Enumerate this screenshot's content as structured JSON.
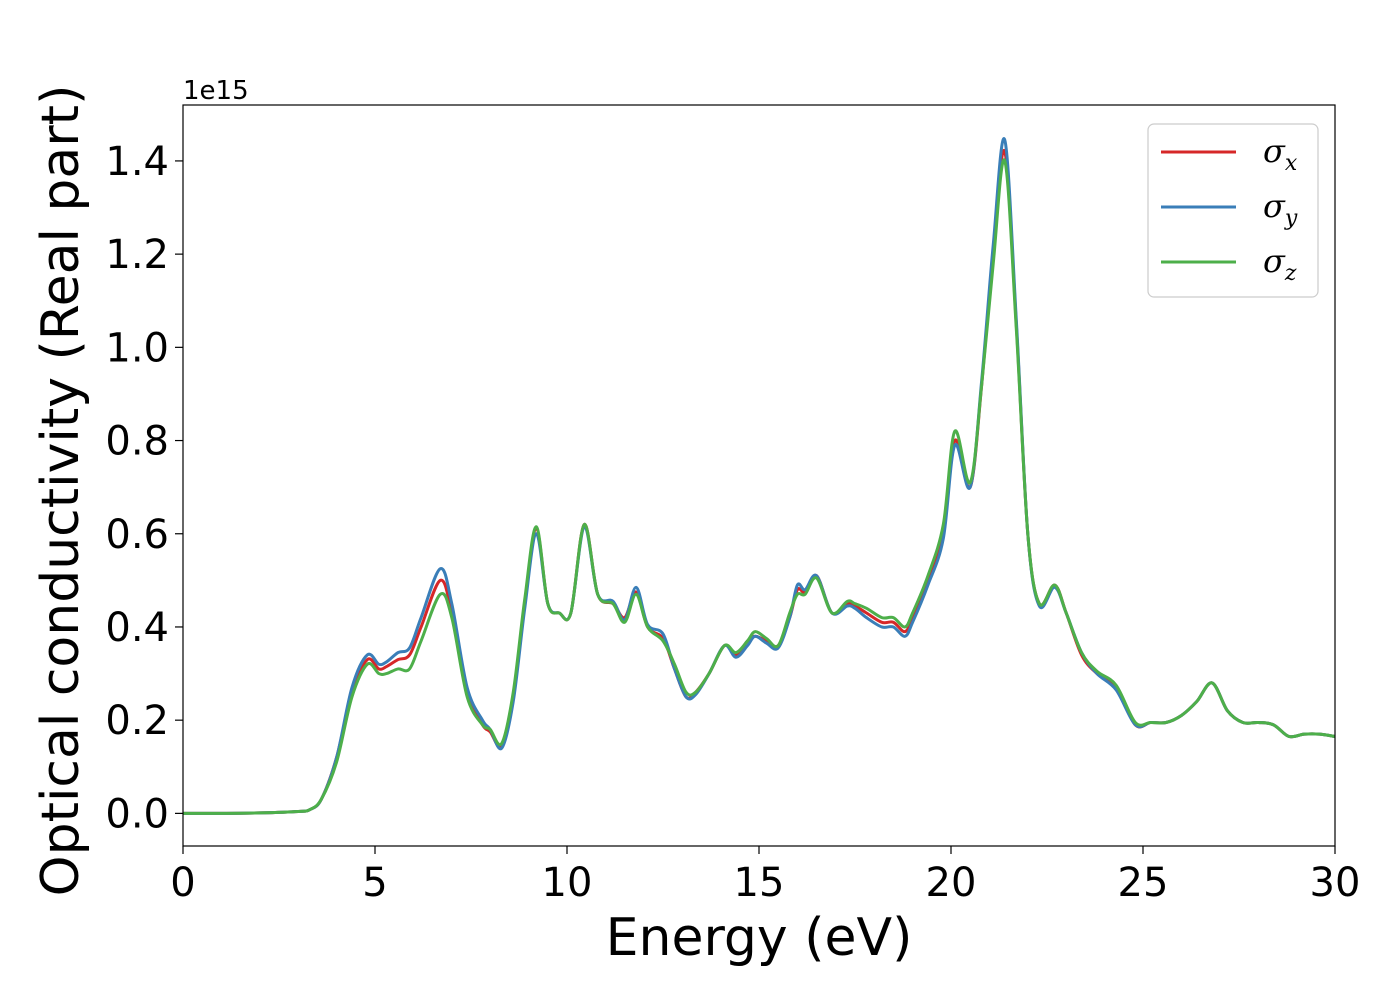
{
  "chart_data": {
    "type": "line",
    "xlabel": "Energy (eV)",
    "ylabel": "Optical conductivity (Real part)",
    "y_offset_label": "1e15",
    "xlim": [
      0,
      30
    ],
    "ylim": [
      -0.07,
      1.52
    ],
    "xticks": [
      0,
      5,
      10,
      15,
      20,
      25,
      30
    ],
    "xtick_labels": [
      "0",
      "5",
      "10",
      "15",
      "20",
      "25",
      "30"
    ],
    "yticks": [
      0.0,
      0.2,
      0.4,
      0.6,
      0.8,
      1.0,
      1.2,
      1.4
    ],
    "ytick_labels": [
      "0.0",
      "0.2",
      "0.4",
      "0.6",
      "0.8",
      "1.0",
      "1.2",
      "1.4"
    ],
    "grid": false,
    "legend_position": "top-right",
    "series": [
      {
        "name": "σx",
        "symbol": "σ",
        "subscript": "x",
        "color": "#d62728",
        "x": [
          0,
          1,
          2,
          3,
          3.3,
          3.6,
          4.0,
          4.4,
          4.8,
          5.1,
          5.3,
          5.6,
          5.9,
          6.2,
          6.7,
          7.0,
          7.4,
          7.8,
          8.0,
          8.3,
          8.6,
          8.9,
          9.2,
          9.5,
          9.8,
          10.1,
          10.45,
          10.8,
          11.2,
          11.5,
          11.8,
          12.1,
          12.5,
          12.8,
          13.1,
          13.35,
          13.7,
          14.1,
          14.4,
          14.7,
          14.9,
          15.2,
          15.5,
          15.8,
          16.0,
          16.2,
          16.5,
          16.9,
          17.3,
          17.5,
          17.8,
          18.2,
          18.5,
          18.8,
          19.0,
          19.4,
          19.8,
          20.1,
          20.5,
          20.8,
          21.1,
          21.4,
          21.7,
          22.0,
          22.3,
          22.7,
          23.0,
          23.4,
          23.8,
          24.3,
          24.8,
          25.2,
          25.6,
          26.0,
          26.4,
          26.8,
          27.2,
          27.6,
          28.0,
          28.4,
          28.8,
          29.2,
          29.6,
          30
        ],
        "values": [
          0,
          0,
          0.001,
          0.004,
          0.008,
          0.03,
          0.12,
          0.26,
          0.33,
          0.31,
          0.315,
          0.33,
          0.34,
          0.4,
          0.5,
          0.43,
          0.26,
          0.19,
          0.175,
          0.145,
          0.25,
          0.45,
          0.61,
          0.45,
          0.43,
          0.43,
          0.62,
          0.47,
          0.45,
          0.42,
          0.475,
          0.4,
          0.375,
          0.31,
          0.25,
          0.26,
          0.3,
          0.36,
          0.34,
          0.37,
          0.38,
          0.37,
          0.36,
          0.42,
          0.48,
          0.475,
          0.51,
          0.43,
          0.45,
          0.445,
          0.43,
          0.41,
          0.41,
          0.39,
          0.42,
          0.5,
          0.6,
          0.8,
          0.7,
          0.92,
          1.2,
          1.42,
          1.05,
          0.6,
          0.45,
          0.49,
          0.43,
          0.34,
          0.3,
          0.27,
          0.19,
          0.195,
          0.195,
          0.21,
          0.24,
          0.28,
          0.22,
          0.195,
          0.195,
          0.19,
          0.165,
          0.17,
          0.17,
          0.165
        ]
      },
      {
        "name": "σy",
        "symbol": "σ",
        "subscript": "y",
        "color": "#3a7eb8",
        "x": [
          0,
          1,
          2,
          3,
          3.3,
          3.6,
          4.0,
          4.4,
          4.8,
          5.1,
          5.3,
          5.6,
          5.9,
          6.2,
          6.7,
          7.0,
          7.4,
          7.8,
          8.0,
          8.3,
          8.6,
          8.9,
          9.2,
          9.5,
          9.8,
          10.1,
          10.45,
          10.8,
          11.2,
          11.5,
          11.8,
          12.1,
          12.5,
          12.8,
          13.1,
          13.35,
          13.7,
          14.1,
          14.4,
          14.7,
          14.9,
          15.2,
          15.5,
          15.8,
          16.0,
          16.2,
          16.5,
          16.9,
          17.3,
          17.5,
          17.8,
          18.2,
          18.5,
          18.8,
          19.0,
          19.4,
          19.8,
          20.1,
          20.5,
          20.8,
          21.1,
          21.4,
          21.7,
          22.0,
          22.3,
          22.7,
          23.0,
          23.4,
          23.8,
          24.3,
          24.8,
          25.2,
          25.6,
          26.0,
          26.4,
          26.8,
          27.2,
          27.6,
          28.0,
          28.4,
          28.8,
          29.2,
          29.6,
          30
        ],
        "values": [
          0,
          0,
          0.001,
          0.004,
          0.008,
          0.03,
          0.12,
          0.27,
          0.34,
          0.32,
          0.325,
          0.345,
          0.355,
          0.42,
          0.525,
          0.45,
          0.27,
          0.2,
          0.18,
          0.14,
          0.24,
          0.44,
          0.6,
          0.45,
          0.43,
          0.43,
          0.615,
          0.47,
          0.455,
          0.415,
          0.485,
          0.405,
          0.385,
          0.31,
          0.25,
          0.255,
          0.3,
          0.36,
          0.335,
          0.36,
          0.38,
          0.365,
          0.355,
          0.42,
          0.49,
          0.48,
          0.51,
          0.43,
          0.445,
          0.44,
          0.42,
          0.4,
          0.4,
          0.38,
          0.41,
          0.49,
          0.59,
          0.79,
          0.7,
          0.93,
          1.22,
          1.445,
          1.06,
          0.6,
          0.445,
          0.485,
          0.43,
          0.345,
          0.3,
          0.265,
          0.19,
          0.195,
          0.195,
          0.21,
          0.24,
          0.28,
          0.22,
          0.195,
          0.195,
          0.19,
          0.165,
          0.17,
          0.17,
          0.165
        ]
      },
      {
        "name": "σz",
        "symbol": "σ",
        "subscript": "z",
        "color": "#4daf4a",
        "x": [
          0,
          1,
          2,
          3,
          3.3,
          3.6,
          4.0,
          4.4,
          4.8,
          5.1,
          5.3,
          5.6,
          5.9,
          6.2,
          6.7,
          7.0,
          7.4,
          7.8,
          8.0,
          8.3,
          8.6,
          8.9,
          9.2,
          9.5,
          9.8,
          10.1,
          10.45,
          10.8,
          11.2,
          11.5,
          11.8,
          12.1,
          12.5,
          12.8,
          13.1,
          13.35,
          13.7,
          14.1,
          14.4,
          14.7,
          14.9,
          15.2,
          15.5,
          15.8,
          16.0,
          16.2,
          16.5,
          16.9,
          17.3,
          17.5,
          17.8,
          18.2,
          18.5,
          18.8,
          19.0,
          19.4,
          19.8,
          20.1,
          20.5,
          20.8,
          21.1,
          21.4,
          21.7,
          22.0,
          22.3,
          22.7,
          23.0,
          23.4,
          23.8,
          24.3,
          24.8,
          25.2,
          25.6,
          26.0,
          26.4,
          26.8,
          27.2,
          27.6,
          28.0,
          28.4,
          28.8,
          29.2,
          29.6,
          30
        ],
        "values": [
          0,
          0,
          0.001,
          0.004,
          0.008,
          0.03,
          0.11,
          0.25,
          0.32,
          0.3,
          0.3,
          0.31,
          0.31,
          0.37,
          0.47,
          0.42,
          0.25,
          0.19,
          0.18,
          0.15,
          0.26,
          0.46,
          0.615,
          0.45,
          0.43,
          0.43,
          0.62,
          0.47,
          0.45,
          0.41,
          0.47,
          0.4,
          0.37,
          0.32,
          0.26,
          0.26,
          0.3,
          0.36,
          0.345,
          0.37,
          0.39,
          0.375,
          0.36,
          0.43,
          0.47,
          0.47,
          0.505,
          0.43,
          0.455,
          0.45,
          0.44,
          0.42,
          0.42,
          0.4,
          0.43,
          0.51,
          0.62,
          0.82,
          0.71,
          0.92,
          1.18,
          1.4,
          1.04,
          0.6,
          0.45,
          0.49,
          0.43,
          0.345,
          0.305,
          0.275,
          0.195,
          0.195,
          0.195,
          0.21,
          0.24,
          0.28,
          0.22,
          0.195,
          0.195,
          0.19,
          0.165,
          0.17,
          0.17,
          0.165
        ]
      }
    ]
  }
}
